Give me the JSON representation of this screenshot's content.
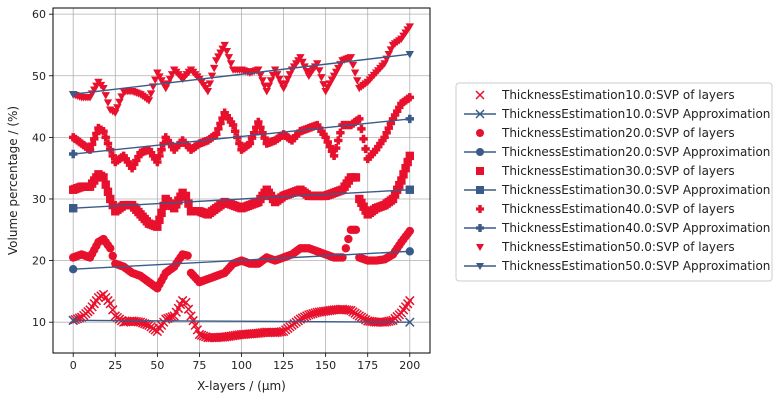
{
  "chart_data": {
    "type": "scatter",
    "xlabel": "X-layers / (µm)",
    "ylabel": "Volume percentage / (%)",
    "xlim": [
      -12,
      212
    ],
    "ylim": [
      5,
      61
    ],
    "xticks": [
      0,
      25,
      50,
      75,
      100,
      125,
      150,
      175,
      200
    ],
    "yticks": [
      10,
      20,
      30,
      40,
      50,
      60
    ],
    "grid": true,
    "legend_position": "right",
    "colors": {
      "measured": "#e8112d",
      "approximation": "#3a5a88"
    },
    "series": [
      {
        "name": "ThicknessEstimation10.0:SVP of layers",
        "kind": "scatter",
        "marker": "x",
        "x": [
          0,
          5,
          10,
          15,
          18,
          22,
          25,
          30,
          35,
          40,
          45,
          50,
          55,
          60,
          65,
          67,
          70,
          75,
          80,
          85,
          90,
          95,
          100,
          105,
          110,
          115,
          120,
          125,
          130,
          135,
          140,
          145,
          150,
          155,
          160,
          165,
          170,
          175,
          180,
          185,
          190,
          195,
          200
        ],
        "y": [
          10.3,
          10.8,
          12,
          14,
          14.5,
          13,
          11,
          10,
          10.2,
          10,
          9.5,
          8.5,
          10.5,
          11,
          13.5,
          13.2,
          11,
          8,
          7.5,
          7.5,
          7.6,
          7.8,
          8,
          8.1,
          8.2,
          8.4,
          8.3,
          8.5,
          9.5,
          10.5,
          11.2,
          11.6,
          11.8,
          12,
          12.1,
          11.9,
          11,
          10.2,
          10,
          10,
          10.3,
          11.5,
          13.5
        ]
      },
      {
        "name": "ThicknessEstimation10.0:SVP Approximation",
        "kind": "line",
        "marker": "x",
        "x": [
          0,
          200
        ],
        "y": [
          10.3,
          10.0
        ]
      },
      {
        "name": "ThicknessEstimation20.0:SVP of layers",
        "kind": "scatter",
        "marker": "o",
        "x": [
          0,
          5,
          10,
          15,
          18,
          22,
          25,
          30,
          35,
          40,
          45,
          50,
          55,
          60,
          65,
          68,
          70,
          75,
          80,
          85,
          90,
          95,
          100,
          105,
          110,
          115,
          120,
          125,
          130,
          135,
          140,
          145,
          150,
          155,
          160,
          162,
          165,
          168,
          170,
          175,
          180,
          185,
          190,
          195,
          200
        ],
        "y": [
          20.5,
          21,
          20.5,
          23,
          23.5,
          22,
          19.5,
          19,
          18,
          17.5,
          16.5,
          15.5,
          18,
          19,
          21,
          20.8,
          18,
          16.5,
          17,
          17.5,
          18,
          19.5,
          20,
          19.5,
          19.5,
          20.5,
          20,
          20.5,
          21,
          22,
          22,
          21.5,
          21,
          20.5,
          20.5,
          22,
          25,
          25,
          20.5,
          20,
          20,
          20.2,
          21,
          23,
          24.8
        ]
      },
      {
        "name": "ThicknessEstimation20.0:SVP Approximation",
        "kind": "line",
        "marker": "o",
        "x": [
          0,
          200
        ],
        "y": [
          18.6,
          21.5
        ]
      },
      {
        "name": "ThicknessEstimation30.0:SVP of layers",
        "kind": "scatter",
        "marker": "s",
        "x": [
          0,
          5,
          10,
          15,
          18,
          22,
          25,
          30,
          35,
          40,
          45,
          50,
          55,
          60,
          65,
          67,
          70,
          75,
          80,
          85,
          90,
          95,
          100,
          105,
          110,
          115,
          120,
          125,
          130,
          135,
          140,
          145,
          150,
          155,
          160,
          165,
          168,
          170,
          175,
          180,
          185,
          190,
          195,
          200
        ],
        "y": [
          31.5,
          32,
          32,
          34,
          33.5,
          30,
          28,
          29,
          29,
          27.5,
          26,
          25.5,
          30,
          28.5,
          31,
          30.5,
          28,
          28,
          27.5,
          28.5,
          29.5,
          29,
          28.5,
          29,
          29.5,
          31.5,
          29.5,
          30.5,
          31,
          31.5,
          30.5,
          30.5,
          30.5,
          31,
          31.5,
          33.5,
          33.5,
          30,
          27.5,
          28.5,
          29,
          30,
          33,
          37
        ]
      },
      {
        "name": "ThicknessEstimation30.0:SVP Approximation",
        "kind": "line",
        "marker": "s",
        "x": [
          0,
          200
        ],
        "y": [
          28.5,
          31.5
        ]
      },
      {
        "name": "ThicknessEstimation40.0:SVP of layers",
        "kind": "scatter",
        "marker": "P",
        "x": [
          0,
          5,
          10,
          15,
          18,
          22,
          25,
          30,
          35,
          40,
          45,
          50,
          55,
          60,
          65,
          70,
          75,
          80,
          85,
          90,
          95,
          100,
          105,
          110,
          115,
          120,
          125,
          130,
          135,
          140,
          145,
          150,
          155,
          160,
          165,
          170,
          175,
          180,
          185,
          190,
          195,
          200
        ],
        "y": [
          40,
          39,
          38,
          41.5,
          41,
          38,
          36,
          37,
          35,
          37.5,
          38,
          36,
          40,
          38,
          39.5,
          38,
          39,
          39.5,
          40.5,
          44,
          42,
          38,
          39,
          42.5,
          39,
          39.5,
          40.5,
          39.5,
          41,
          41.5,
          42,
          40,
          37,
          42,
          42,
          43,
          36.5,
          38,
          40,
          43,
          45.5,
          46.5
        ]
      },
      {
        "name": "ThicknessEstimation40.0:SVP Approximation",
        "kind": "line",
        "marker": "P",
        "x": [
          0,
          200
        ],
        "y": [
          37.3,
          43.0
        ]
      },
      {
        "name": "ThicknessEstimation50.0:SVP of layers",
        "kind": "scatter",
        "marker": "v",
        "x": [
          0,
          5,
          10,
          15,
          18,
          22,
          25,
          30,
          35,
          40,
          45,
          50,
          55,
          60,
          65,
          70,
          75,
          80,
          85,
          90,
          95,
          100,
          105,
          110,
          115,
          120,
          125,
          130,
          135,
          140,
          145,
          150,
          155,
          160,
          165,
          170,
          175,
          180,
          185,
          190,
          195,
          200
        ],
        "y": [
          47,
          46.5,
          46.5,
          49,
          48,
          44.5,
          44,
          47.5,
          47.5,
          47,
          46,
          50.5,
          48,
          51,
          49.5,
          51,
          49.5,
          47.5,
          52.5,
          55,
          51,
          51,
          50.5,
          51,
          47.5,
          51,
          48,
          51,
          53,
          50,
          52,
          47.5,
          50,
          52.5,
          53,
          48,
          49,
          50.5,
          52,
          55,
          56,
          58
        ]
      },
      {
        "name": "ThicknessEstimation50.0:SVP Approximation",
        "kind": "line",
        "marker": "v",
        "x": [
          0,
          200
        ],
        "y": [
          47.0,
          53.5
        ]
      }
    ]
  }
}
